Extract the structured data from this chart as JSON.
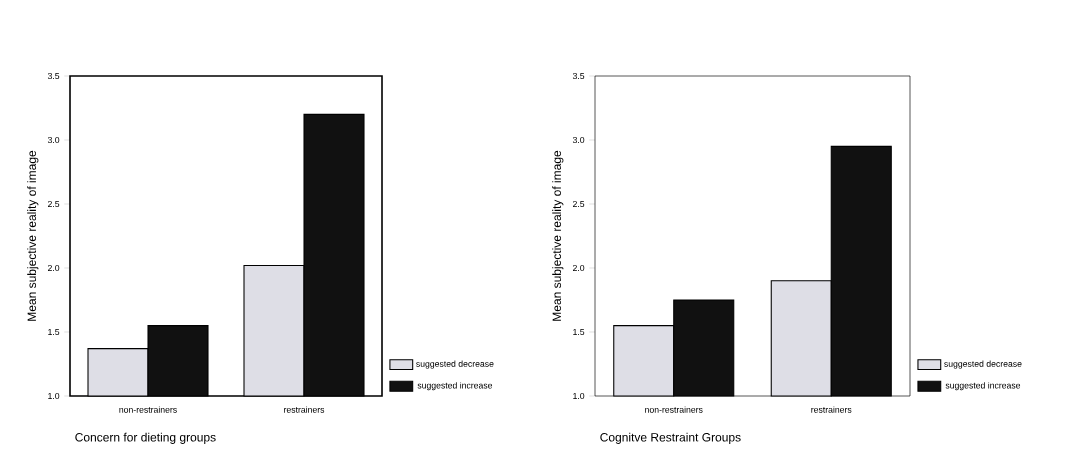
{
  "chart_data": [
    {
      "type": "bar",
      "xlabel": "Concern for dieting groups",
      "ylabel": "Mean subjective reality of image",
      "categories": [
        "non-restrainers",
        "restrainers"
      ],
      "series": [
        {
          "name": "suggested decrease",
          "color": "#dedee6",
          "values": [
            1.37,
            2.02
          ]
        },
        {
          "name": "suggested increase",
          "color": "#111111",
          "values": [
            1.55,
            3.2
          ]
        }
      ],
      "ylim": [
        1.0,
        3.5
      ],
      "yticks": [
        {
          "value": 1.0,
          "label": "1.0"
        },
        {
          "value": 1.5,
          "label": "1.5"
        },
        {
          "value": 2.0,
          "label": "2.0"
        },
        {
          "value": 2.5,
          "label": "2.5"
        },
        {
          "value": 3.0,
          "label": "3.0"
        },
        {
          "value": 3.5,
          "label": "3.5"
        }
      ],
      "legend": "bottom right"
    },
    {
      "type": "bar",
      "xlabel": "Cognitve Restraint Groups",
      "ylabel": "Mean subjective reality of image",
      "categories": [
        "non-restrainers",
        "restrainers"
      ],
      "series": [
        {
          "name": "suggested decrease",
          "color": "#dedee6",
          "values": [
            1.55,
            1.9
          ]
        },
        {
          "name": "suggested increase",
          "color": "#111111",
          "values": [
            1.75,
            2.95
          ]
        }
      ],
      "ylim": [
        1.0,
        3.5
      ],
      "yticks": [
        {
          "value": 1.0,
          "label": "1.0"
        },
        {
          "value": 1.5,
          "label": "1.5"
        },
        {
          "value": 2.0,
          "label": "2.0"
        },
        {
          "value": 2.5,
          "label": "2.5"
        },
        {
          "value": 3.0,
          "label": "3.0"
        },
        {
          "value": 3.5,
          "label": "3.5"
        }
      ],
      "legend": "bottom right"
    }
  ]
}
